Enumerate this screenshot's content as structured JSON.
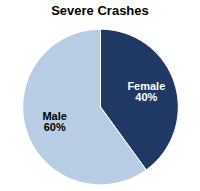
{
  "chart_data": {
    "type": "pie",
    "title": "Severe Crashes",
    "categories": [
      "Female",
      "Male"
    ],
    "values": [
      40,
      60
    ],
    "value_labels": [
      "40%",
      "60%"
    ],
    "data_labels": true,
    "colors": [
      "#1f3864",
      "#b8cce4"
    ]
  }
}
